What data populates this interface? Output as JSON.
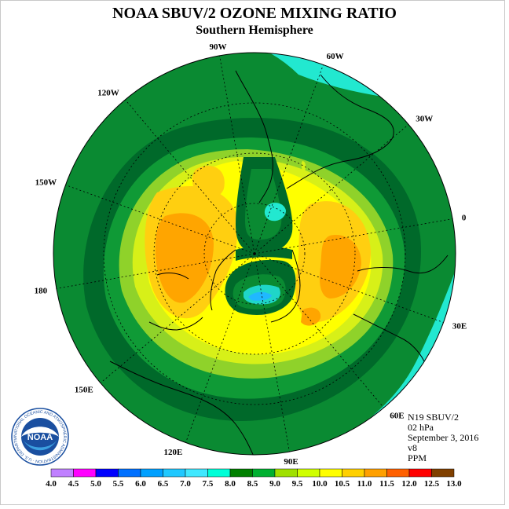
{
  "header": {
    "title": "NOAA SBUV/2 OZONE MIXING RATIO",
    "subtitle": "Southern Hemisphere"
  },
  "info": {
    "satellite": "N19 SBUV/2",
    "pressure": "02 hPa",
    "date": "September 3, 2016",
    "version": "v8",
    "units": "PPM"
  },
  "logo": {
    "text": "NOAA",
    "ring_text": "NATIONAL OCEANIC AND ATMOSPHERIC ADMINISTRATION · U.S. DEPARTMENT OF COMMERCE"
  },
  "map": {
    "longitude_labels": [
      "0",
      "30E",
      "60E",
      "90E",
      "120E",
      "150E",
      "180",
      "150W",
      "120W",
      "90W",
      "60W",
      "30W"
    ]
  },
  "colorbar": {
    "ticks": [
      "4.0",
      "4.5",
      "5.0",
      "5.5",
      "6.0",
      "6.5",
      "7.0",
      "7.5",
      "8.0",
      "8.5",
      "9.0",
      "9.5",
      "10.0",
      "10.5",
      "11.0",
      "11.5",
      "12.0",
      "12.5",
      "13.0"
    ],
    "colors": [
      "#c080ff",
      "#e0a0ff",
      "#ff00ff",
      "#0000ff",
      "#0070ff",
      "#00a0ff",
      "#20c8ff",
      "#40e8ff",
      "#00ffd8",
      "#008000",
      "#00b030",
      "#a0e000",
      "#d0ff00",
      "#ffff00",
      "#ffd000",
      "#ffa000",
      "#ff6000",
      "#ff0000",
      "#804000"
    ]
  }
}
